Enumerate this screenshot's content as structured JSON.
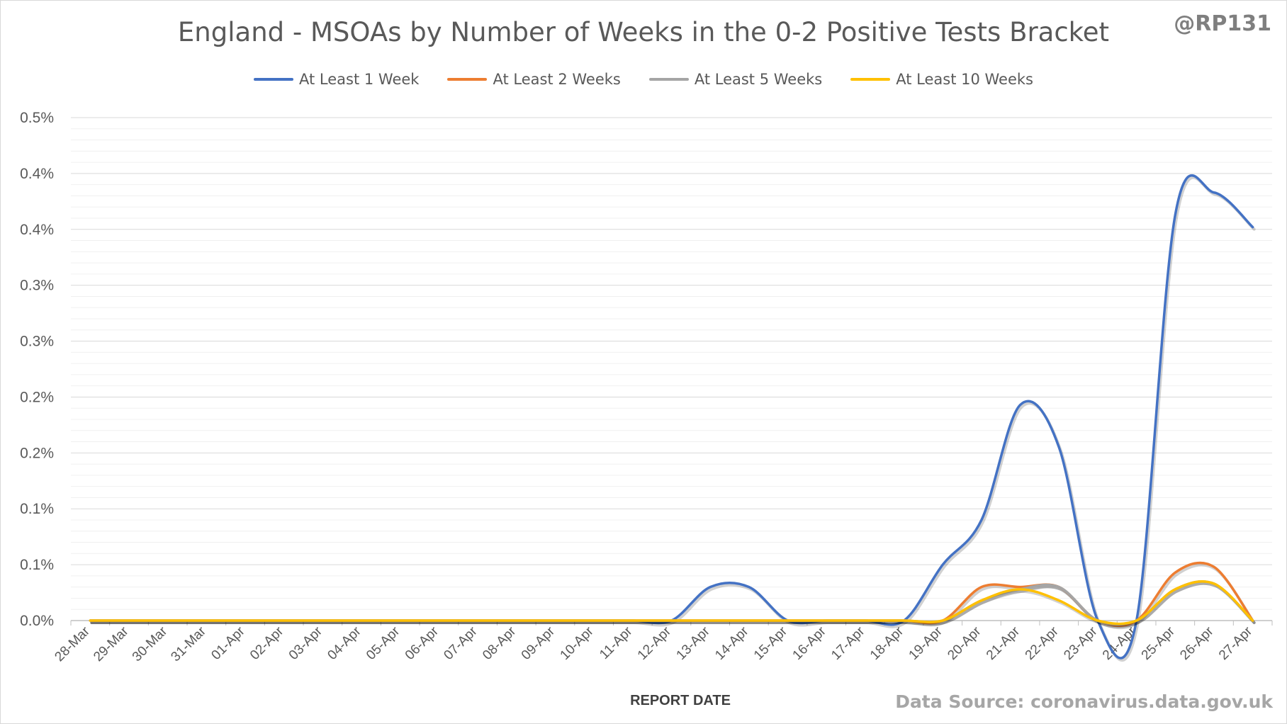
{
  "title": "England - MSOAs by Number of Weeks in the 0-2 Positive Tests Bracket",
  "handle": "@RP131",
  "source": "Data Source: coronavirus.data.gov.uk",
  "chart_data": {
    "type": "line",
    "title": "England - MSOAs by Number of Weeks in the 0-2 Positive Tests Bracket",
    "xlabel": "REPORT DATE",
    "ylabel": "",
    "ylim": [
      0,
      0.0045
    ],
    "ytick_values": [
      0,
      0.0005,
      0.001,
      0.0015,
      0.002,
      0.0025,
      0.003,
      0.0035,
      0.004,
      0.0045
    ],
    "ytick_labels": [
      "0.0%",
      "0.1%",
      "0.1%",
      "0.2%",
      "0.2%",
      "0.3%",
      "0.3%",
      "0.4%",
      "0.4%",
      "0.5%"
    ],
    "grid": true,
    "legend": "top",
    "categories": [
      "28-Mar",
      "29-Mar",
      "30-Mar",
      "31-Mar",
      "01-Apr",
      "02-Apr",
      "03-Apr",
      "04-Apr",
      "05-Apr",
      "06-Apr",
      "07-Apr",
      "08-Apr",
      "09-Apr",
      "10-Apr",
      "11-Apr",
      "12-Apr",
      "13-Apr",
      "14-Apr",
      "15-Apr",
      "16-Apr",
      "17-Apr",
      "18-Apr",
      "19-Apr",
      "20-Apr",
      "21-Apr",
      "22-Apr",
      "23-Apr",
      "24-Apr",
      "25-Apr",
      "26-Apr",
      "27-Apr"
    ],
    "series": [
      {
        "name": "At Least 1 Week",
        "color": "#4472c4",
        "values": [
          0,
          0,
          0,
          0,
          0,
          0,
          0,
          0,
          0,
          0,
          0,
          0,
          0,
          0,
          0,
          0,
          0.0003,
          0.0003,
          0,
          0,
          0,
          0,
          0.0005,
          0.0009,
          0.00193,
          0.00155,
          0,
          0,
          0.00363,
          0.00383,
          0.00352
        ]
      },
      {
        "name": "At Least 2 Weeks",
        "color": "#ed7d31",
        "values": [
          0,
          0,
          0,
          0,
          0,
          0,
          0,
          0,
          0,
          0,
          0,
          0,
          0,
          0,
          0,
          0,
          0,
          0,
          0,
          0,
          0,
          0,
          0,
          0.0003,
          0.0003,
          0.0003,
          0,
          0,
          0.00043,
          0.00048,
          0
        ]
      },
      {
        "name": "At Least 5 Weeks",
        "color": "#a5a5a5",
        "values": [
          0,
          0,
          0,
          0,
          0,
          0,
          0,
          0,
          0,
          0,
          0,
          0,
          0,
          0,
          0,
          0,
          0,
          0,
          0,
          0,
          0,
          0,
          0,
          0.00018,
          0.00028,
          0.0003,
          0,
          0,
          0.00028,
          0.00033,
          0
        ]
      },
      {
        "name": "At Least 10 Weeks",
        "color": "#ffc000",
        "values": [
          0,
          0,
          0,
          0,
          0,
          0,
          0,
          0,
          0,
          0,
          0,
          0,
          0,
          0,
          0,
          0,
          0,
          0,
          0,
          0,
          0,
          0,
          0,
          0.00018,
          0.00028,
          0.00018,
          0,
          0,
          0.00028,
          0.00033,
          0
        ]
      }
    ]
  }
}
